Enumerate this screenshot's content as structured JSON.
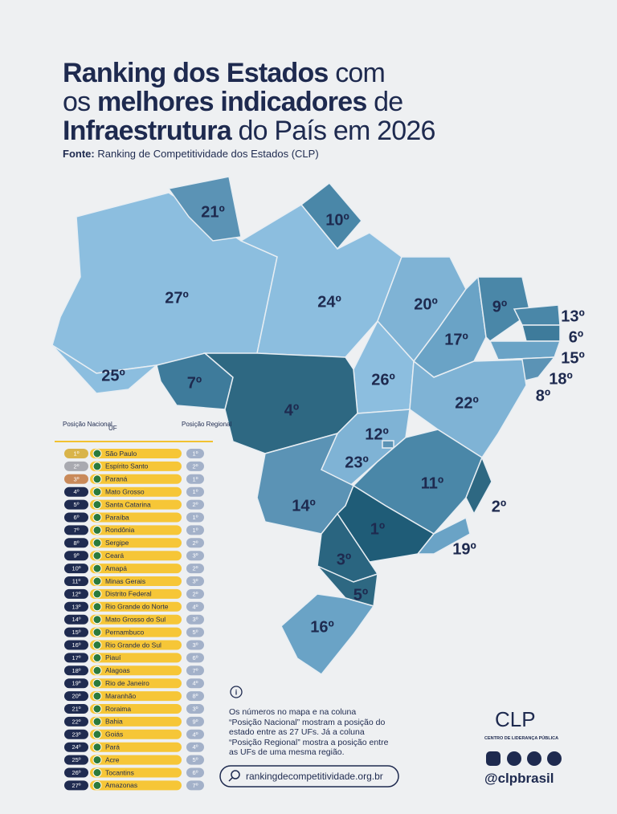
{
  "title": [
    {
      "bold": "Ranking dos Estados",
      "regular": "com"
    },
    {
      "regular_before": "os",
      "bold": "melhores indicadores",
      "regular": "de"
    },
    {
      "bold": "Infraestrutura",
      "regular": "do País em 2026"
    }
  ],
  "source": {
    "label": "Fonte:",
    "text": "Ranking de Competitividade dos Estados (CLP)"
  },
  "map_labels": [
    "21º",
    "10º",
    "27º",
    "24º",
    "20º",
    "9º",
    "13º",
    "6º",
    "15º",
    "18º",
    "8º",
    "17º",
    "26º",
    "25º",
    "7º",
    "4º",
    "22º",
    "12º",
    "23º",
    "11º",
    "14º",
    "2º",
    "1º",
    "19º",
    "3º",
    "5º",
    "16º"
  ],
  "table": {
    "headers": {
      "national": "Posição Nacional",
      "uf": "UF",
      "regional": "Posição Regional"
    },
    "rows": [
      [
        "1º",
        "São Paulo",
        "1º"
      ],
      [
        "2º",
        "Espírito Santo",
        "2º"
      ],
      [
        "3º",
        "Paraná",
        "1º"
      ],
      [
        "4º",
        "Mato Grosso",
        "1º"
      ],
      [
        "5º",
        "Santa Catarina",
        "2º"
      ],
      [
        "6º",
        "Paraíba",
        "1º"
      ],
      [
        "7º",
        "Rondônia",
        "1º"
      ],
      [
        "8º",
        "Sergipe",
        "2º"
      ],
      [
        "9º",
        "Ceará",
        "3º"
      ],
      [
        "10º",
        "Amapá",
        "2º"
      ],
      [
        "11º",
        "Minas Gerais",
        "3º"
      ],
      [
        "12º",
        "Distrito Federal",
        "2º"
      ],
      [
        "13º",
        "Rio Grande do Norte",
        "4º"
      ],
      [
        "14º",
        "Mato Grosso do Sul",
        "3º"
      ],
      [
        "15º",
        "Pernambuco",
        "5º"
      ],
      [
        "16º",
        "Rio Grande do Sul",
        "3º"
      ],
      [
        "17º",
        "Piauí",
        "6º"
      ],
      [
        "18º",
        "Alagoas",
        "7º"
      ],
      [
        "19º",
        "Rio de Janeiro",
        "4º"
      ],
      [
        "20º",
        "Maranhão",
        "8º"
      ],
      [
        "21º",
        "Roraima",
        "3º"
      ],
      [
        "22º",
        "Bahia",
        "9º"
      ],
      [
        "23º",
        "Goiás",
        "4º"
      ],
      [
        "24º",
        "Pará",
        "4º"
      ],
      [
        "25º",
        "Acre",
        "5º"
      ],
      [
        "26º",
        "Tocantins",
        "6º"
      ],
      [
        "27º",
        "Amazonas",
        "7º"
      ]
    ]
  },
  "note": "Os números no mapa e na coluna “Posição Nacional” mostram a posição do estado entre as 27 UFs. Já a coluna “Posição Regional” mostra a posição entre as UFs de uma mesma região.",
  "website": "rankingdecompetitividade.org.br",
  "logo": {
    "name": "CLP",
    "subtitle": "CENTRO DE LIDERANÇA PÚBLICA"
  },
  "social": "@clpbrasil"
}
